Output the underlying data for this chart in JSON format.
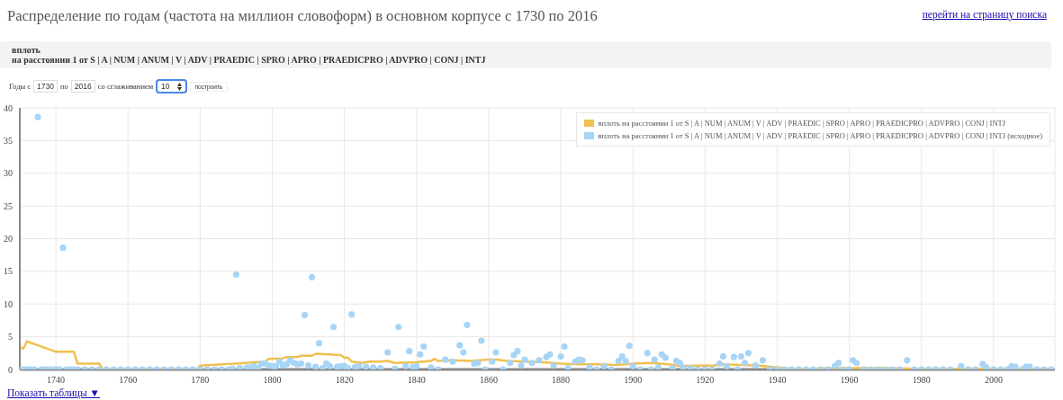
{
  "chart_data": {
    "type": "line",
    "title": "Распределение по годам (частота на миллион словоформ) в основном корпусе с 1730 по 2016",
    "annotations": [
      "перейти на страницу поиска",
      "вплоть",
      "на расстоянии 1 от S | A | NUM | ANUM | V | ADV | PRAEDIC | SPRO | APRO | PRAEDICPRO | ADVPRO | CONJ | INTJ",
      "Годы с",
      "1730",
      "по",
      "2016",
      "со сглаживанием",
      "10",
      "построить",
      "Показать таблицы ▼"
    ],
    "series": [
      {
        "name": "вплоть на расстоянии 1 от S | A | NUM | ANUM | V | ADV | PRAEDIC | SPRO | APRO | PRAEDICPRO | ADVPRO | CONJ | INTJ",
        "color": "#f0c050",
        "x": [
          1730,
          1731,
          1732,
          1735,
          1740,
          1745,
          1746,
          1752,
          1753,
          1779,
          1780,
          1790,
          1798,
          1799,
          1803,
          1804,
          1807,
          1808,
          1811,
          1812,
          1819,
          1820,
          1821,
          1822,
          1825,
          1827,
          1830,
          1832,
          1834,
          1840,
          1844,
          1845,
          1846,
          1850,
          1855,
          1860,
          1862,
          1865,
          1870,
          1875,
          1880,
          1885,
          1890,
          1895,
          1898,
          1900,
          1905,
          1910,
          1913,
          1918,
          1922,
          1925,
          1930,
          1935,
          1940,
          1944,
          1950,
          1955,
          1960,
          1965,
          1970,
          1980,
          1990,
          2000,
          2010,
          2016
        ],
        "values": [
          3.4,
          3.2,
          4.3,
          3.7,
          2.7,
          2.7,
          0.9,
          0.9,
          0,
          0,
          0.6,
          0.9,
          1.2,
          1.6,
          1.7,
          1.9,
          1.9,
          2.1,
          2.1,
          2.4,
          2.2,
          1.8,
          1.8,
          1.2,
          1.0,
          1.2,
          1.2,
          1.3,
          1.0,
          1.1,
          1.3,
          1.6,
          1.3,
          1.4,
          1.3,
          1.5,
          1.5,
          1.3,
          1.2,
          1.1,
          0.9,
          0.8,
          0.8,
          0.7,
          0.8,
          0.9,
          1.0,
          0.8,
          0.5,
          0.6,
          0.6,
          0.8,
          0.7,
          0.6,
          0.3,
          0.1,
          0.1,
          0.2,
          0.2,
          0.2,
          0.2,
          0.1,
          0.1,
          0.1,
          0.1,
          0.1
        ]
      },
      {
        "type": "scatter",
        "marker": "circle",
        "name": "вплоть на расстоянии 1 от S | A | NUM | ANUM | V | ADV | PRAEDIC | SPRO | APRO | PRAEDICPRO | ADVPRO | CONJ | INTJ (исходное)",
        "color": "#a8d4f5",
        "x": [
          1730,
          1731,
          1732,
          1733,
          1734,
          1735,
          1736,
          1737,
          1738,
          1739,
          1740,
          1741,
          1742,
          1743,
          1744,
          1745,
          1746,
          1748,
          1750,
          1752,
          1754,
          1756,
          1758,
          1760,
          1762,
          1764,
          1766,
          1768,
          1770,
          1772,
          1774,
          1776,
          1778,
          1780,
          1782,
          1784,
          1786,
          1788,
          1789,
          1790,
          1791,
          1793,
          1794,
          1795,
          1796,
          1797,
          1798,
          1799,
          1800,
          1801,
          1802,
          1803,
          1804,
          1805,
          1806,
          1807,
          1808,
          1809,
          1810,
          1811,
          1812,
          1813,
          1814,
          1815,
          1816,
          1817,
          1818,
          1819,
          1820,
          1821,
          1822,
          1823,
          1824,
          1826,
          1828,
          1830,
          1832,
          1834,
          1835,
          1837,
          1838,
          1839,
          1840,
          1841,
          1842,
          1844,
          1846,
          1848,
          1850,
          1852,
          1853,
          1854,
          1856,
          1857,
          1858,
          1859,
          1861,
          1862,
          1864,
          1866,
          1867,
          1868,
          1869,
          1870,
          1872,
          1874,
          1876,
          1877,
          1878,
          1880,
          1881,
          1882,
          1884,
          1885,
          1886,
          1888,
          1890,
          1892,
          1894,
          1896,
          1897,
          1898,
          1899,
          1900,
          1902,
          1904,
          1905,
          1906,
          1907,
          1908,
          1909,
          1911,
          1912,
          1913,
          1914,
          1916,
          1918,
          1920,
          1922,
          1924,
          1925,
          1926,
          1928,
          1929,
          1930,
          1931,
          1932,
          1934,
          1936,
          1938,
          1940,
          1942,
          1944,
          1946,
          1948,
          1950,
          1952,
          1954,
          1956,
          1957,
          1958,
          1960,
          1961,
          1962,
          1964,
          1966,
          1968,
          1970,
          1972,
          1974,
          1976,
          1978,
          1980,
          1982,
          1984,
          1986,
          1988,
          1991,
          1993,
          1995,
          1997,
          1998,
          2000,
          2002,
          2004,
          2005,
          2006,
          2008,
          2009,
          2010,
          2012,
          2014,
          2016
        ],
        "values": [
          0,
          0,
          0,
          0,
          0,
          38.6,
          0,
          0,
          0,
          0,
          0,
          0,
          18.6,
          0,
          0,
          0,
          0,
          0,
          0,
          0,
          0,
          0,
          0,
          0,
          0,
          0,
          0,
          0,
          0,
          0,
          0,
          0,
          0,
          0,
          0,
          0,
          0,
          0,
          0.1,
          14.5,
          0.2,
          0.3,
          0.3,
          0.5,
          0.2,
          0.9,
          0.9,
          0.6,
          0.5,
          0.5,
          1.2,
          0.6,
          0.8,
          1.4,
          1.0,
          0.8,
          0.9,
          8.3,
          0.6,
          14.1,
          0.4,
          4.0,
          0.2,
          0.9,
          0.5,
          6.5,
          0.4,
          0.5,
          0.5,
          0.2,
          8.4,
          0.4,
          0.5,
          0.4,
          0.3,
          0.2,
          2.6,
          0.1,
          6.5,
          0.5,
          2.8,
          0.4,
          0.5,
          2.3,
          3.5,
          0.3,
          0,
          1.5,
          1.2,
          3.7,
          2.6,
          6.8,
          0.9,
          1.0,
          4.4,
          0,
          1.2,
          2.6,
          0,
          1.0,
          2.2,
          2.8,
          0.6,
          1.5,
          1.0,
          1.4,
          1.9,
          2.3,
          0.6,
          2.0,
          3.5,
          0.2,
          1.2,
          1.5,
          1.4,
          0.3,
          0,
          0.5,
          0,
          1.3,
          2.0,
          1.3,
          3.6,
          0.5,
          0,
          2.5,
          0,
          1.5,
          0.3,
          2.3,
          1.8,
          0.2,
          1.3,
          1.0,
          0.3,
          0.2,
          0,
          0,
          0,
          0.9,
          2.0,
          0.5,
          1.9,
          0,
          2.0,
          1.0,
          2.5,
          0.6,
          1.4,
          0,
          0,
          0,
          0,
          0,
          0,
          0,
          0,
          0,
          0.5,
          1.0,
          0,
          0,
          1.4,
          1.0,
          0,
          0,
          0,
          0,
          0,
          0,
          1.4,
          0,
          0,
          0,
          0,
          0,
          0,
          0.5,
          0,
          0,
          0.8,
          0.3,
          0,
          0,
          0,
          0.5,
          0.4,
          0,
          0.4,
          0.4,
          0,
          0,
          0
        ]
      }
    ],
    "xlim": [
      1730,
      2017
    ],
    "xticks": [
      1740,
      1760,
      1780,
      1800,
      1820,
      1840,
      1860,
      1880,
      1900,
      1920,
      1940,
      1960,
      1980,
      2000
    ],
    "ylim": [
      0,
      40
    ],
    "yticks": [
      0,
      5,
      10,
      15,
      20,
      25,
      30,
      35,
      40
    ],
    "grid": true,
    "legend": "top right"
  }
}
